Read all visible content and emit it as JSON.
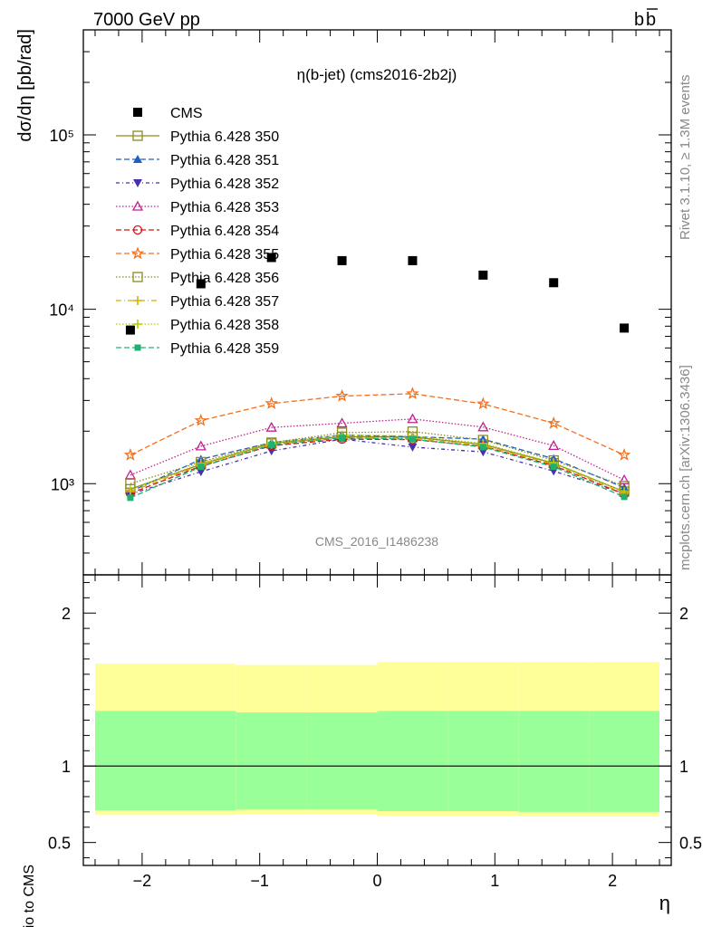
{
  "header": {
    "left": "7000 GeV pp",
    "right_main": "b",
    "right_bar": "b"
  },
  "side_text": {
    "rivet": "Rivet 3.1.10, ≥ 1.3M events",
    "mcplots": "mcplots.cern.ch [arXiv:1306.3436]"
  },
  "chart_data": {
    "type": "scatter",
    "title": "η(b-jet) (cms2016-2b2j)",
    "watermark": "CMS_2016_I1486238",
    "xlabel": "η",
    "ylabel": "dσ/dη [pb/rad]",
    "ratio_ylabel": "Ratio to CMS",
    "xlim": [
      -2.5,
      2.5
    ],
    "ylim": [
      300,
      400000
    ],
    "yscale": "log",
    "ratio_ylim": [
      0.35,
      2.25
    ],
    "x_ticks": [
      "−2",
      "−1",
      "0",
      "1",
      "2"
    ],
    "y_ticks": [
      "10³",
      "10⁴",
      "10⁵"
    ],
    "ratio_ticks": [
      "0.5",
      "1",
      "2"
    ],
    "x": [
      -2.1,
      -1.5,
      -0.9,
      -0.3,
      0.3,
      0.9,
      1.5,
      2.1
    ],
    "cms": {
      "name": "CMS",
      "values": [
        7600,
        14000,
        19800,
        19000,
        19000,
        15700,
        14200,
        7800
      ]
    },
    "series": [
      {
        "name": "Pythia 6.428 350",
        "color": "#8c8c1f",
        "dash": "",
        "marker": "square-open",
        "values": [
          930,
          1290,
          1700,
          1860,
          1850,
          1680,
          1310,
          900
        ]
      },
      {
        "name": "Pythia 6.428 351",
        "color": "#1f5fbf",
        "dash": "6,3",
        "marker": "triangle-up",
        "values": [
          900,
          1380,
          1720,
          1900,
          1860,
          1800,
          1390,
          950
        ]
      },
      {
        "name": "Pythia 6.428 352",
        "color": "#4a30b0",
        "dash": "4,3,1,3",
        "marker": "triangle-down",
        "values": [
          870,
          1170,
          1540,
          1800,
          1620,
          1520,
          1180,
          880
        ]
      },
      {
        "name": "Pythia 6.428 353",
        "color": "#c02090",
        "dash": "1.5,2",
        "marker": "triangle-open",
        "values": [
          1120,
          1640,
          2100,
          2220,
          2350,
          2110,
          1650,
          1050
        ]
      },
      {
        "name": "Pythia 6.428 354",
        "color": "#dd1111",
        "dash": "6,3",
        "marker": "circle-open",
        "values": [
          880,
          1260,
          1650,
          1800,
          1790,
          1640,
          1270,
          870
        ]
      },
      {
        "name": "Pythia 6.428 355",
        "color": "#f07020",
        "dash": "6,3",
        "marker": "star-open",
        "values": [
          1460,
          2300,
          2880,
          3180,
          3280,
          2870,
          2220,
          1460
        ]
      },
      {
        "name": "Pythia 6.428 356",
        "color": "#8c8c1f",
        "dash": "1.5,2",
        "marker": "square-open",
        "values": [
          1000,
          1330,
          1720,
          1960,
          1990,
          1780,
          1360,
          970
        ]
      },
      {
        "name": "Pythia 6.428 357",
        "color": "#d4b000",
        "dash": "6,3,1,3",
        "marker": "cross",
        "values": [
          900,
          1280,
          1680,
          1830,
          1820,
          1650,
          1290,
          880
        ]
      },
      {
        "name": "Pythia 6.428 358",
        "color": "#b6cc00",
        "dash": "1.5,2",
        "marker": "cross",
        "values": [
          920,
          1310,
          1710,
          1900,
          1880,
          1700,
          1320,
          900
        ]
      },
      {
        "name": "Pythia 6.428 359",
        "color": "#20b070",
        "dash": "6,3",
        "marker": "square-small",
        "values": [
          830,
          1250,
          1670,
          1830,
          1800,
          1620,
          1250,
          840
        ]
      }
    ],
    "ratio_bands": {
      "x_edges": [
        -2.4,
        -1.2,
        -0.6,
        0,
        0.6,
        1.2,
        1.8,
        2.4
      ],
      "green_lo": [
        0.71,
        0.715,
        0.715,
        0.705,
        0.705,
        0.7,
        0.7
      ],
      "green_hi": [
        1.36,
        1.35,
        1.35,
        1.36,
        1.36,
        1.36,
        1.36
      ],
      "yellow_lo": [
        0.68,
        0.685,
        0.685,
        0.675,
        0.675,
        0.67,
        0.67
      ],
      "yellow_hi": [
        1.67,
        1.66,
        1.66,
        1.68,
        1.68,
        1.68,
        1.68
      ]
    },
    "ratio_ref_line": 1,
    "legend_position": "top-left"
  }
}
